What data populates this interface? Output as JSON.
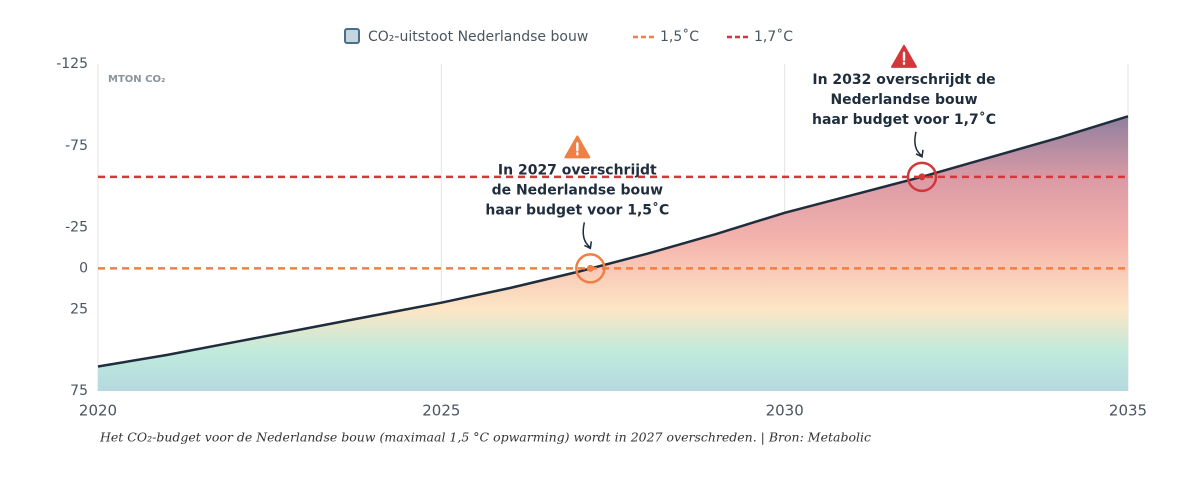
{
  "chart_data": {
    "type": "area",
    "y_label": "MTON CO₂",
    "caption": "Het CO₂-budget voor de Nederlandse bouw (maximaal 1,5 °C opwarming) wordt in 2027 overschreden. | Bron: Metabolic",
    "x": [
      2020,
      2021,
      2022,
      2023,
      2024,
      2025,
      2026,
      2027,
      2028,
      2029,
      2030,
      2031,
      2032,
      2033,
      2034,
      2035
    ],
    "series": [
      {
        "name": "CO₂-uitstoot Nederlandse bouw",
        "color": "#1f2d3d",
        "values": [
          60,
          53,
          45,
          37,
          29,
          21,
          12,
          2,
          -9,
          -21,
          -34,
          -45,
          -56,
          -68,
          -80,
          -93
        ]
      }
    ],
    "thresholds": [
      {
        "name": "1,5˚C",
        "value": 0,
        "color": "#f07f45"
      },
      {
        "name": "1,7˚C",
        "value": -56,
        "color": "#d3373b"
      }
    ],
    "annotations": [
      {
        "lines": [
          "In 2027 overschrijdt",
          "de Nederlandse bouw",
          "haar budget voor 1,5˚C"
        ],
        "x": 2027.17,
        "y": 0,
        "color": "#f07f45"
      },
      {
        "lines": [
          "In 2032 overschrijdt de",
          "Nederlandse bouw",
          "haar budget voor 1,7˚C"
        ],
        "x": 2032,
        "y": -56,
        "color": "#d3373b"
      }
    ],
    "xlim": [
      2020,
      2035
    ],
    "xticks": [
      2020,
      2025,
      2030,
      2035
    ],
    "ylim": [
      -125,
      75
    ],
    "yticks": [
      -125,
      -75,
      -25,
      0,
      25,
      75
    ],
    "y_reversed": true,
    "grid": true
  }
}
